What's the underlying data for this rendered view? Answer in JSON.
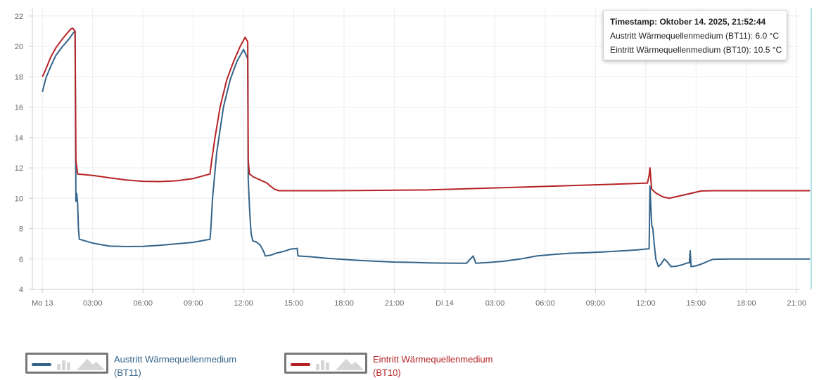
{
  "chart_data": {
    "type": "line",
    "title": "",
    "xlabel": "",
    "ylabel": "",
    "ylim": [
      4,
      22.5
    ],
    "yticks": [
      4,
      6,
      8,
      10,
      12,
      14,
      16,
      18,
      20,
      22
    ],
    "xlim": [
      -0.6,
      45.2
    ],
    "xticks": [
      {
        "x": 0,
        "label": "Mo 13"
      },
      {
        "x": 3,
        "label": "03:00"
      },
      {
        "x": 6,
        "label": "06:00"
      },
      {
        "x": 9,
        "label": "09:00"
      },
      {
        "x": 12,
        "label": "12:00"
      },
      {
        "x": 15,
        "label": "15:00"
      },
      {
        "x": 18,
        "label": "18:00"
      },
      {
        "x": 21,
        "label": "21:00"
      },
      {
        "x": 24,
        "label": "Di 14"
      },
      {
        "x": 27,
        "label": "03:00"
      },
      {
        "x": 30,
        "label": "06:00"
      },
      {
        "x": 33,
        "label": "09:00"
      },
      {
        "x": 36,
        "label": "12:00"
      },
      {
        "x": 39,
        "label": "15:00"
      },
      {
        "x": 42,
        "label": "18:00"
      },
      {
        "x": 45,
        "label": "21:00"
      }
    ],
    "x_unit": "hours since Mo 13 00:00",
    "grid": true,
    "legend_position": "bottom",
    "cursor_x": 45.87,
    "series": [
      {
        "name": "Austritt Wärmequellenmedium (BT11)",
        "color": "#34648a",
        "points": [
          [
            0,
            17.0
          ],
          [
            0.2,
            17.9
          ],
          [
            0.5,
            18.7
          ],
          [
            0.8,
            19.4
          ],
          [
            1.2,
            20.0
          ],
          [
            1.6,
            20.5
          ],
          [
            1.85,
            20.9
          ],
          [
            1.95,
            21.0
          ],
          [
            2.0,
            9.8
          ],
          [
            2.05,
            10.3
          ],
          [
            2.1,
            9.7
          ],
          [
            2.15,
            8.0
          ],
          [
            2.2,
            7.3
          ],
          [
            3,
            7.05
          ],
          [
            4,
            6.85
          ],
          [
            5,
            6.82
          ],
          [
            6,
            6.83
          ],
          [
            7,
            6.9
          ],
          [
            8,
            7.0
          ],
          [
            9,
            7.1
          ],
          [
            10,
            7.3
          ],
          [
            10.05,
            8.0
          ],
          [
            10.15,
            10.0
          ],
          [
            10.4,
            13.0
          ],
          [
            10.8,
            16.0
          ],
          [
            11.2,
            17.8
          ],
          [
            11.6,
            19.0
          ],
          [
            11.9,
            19.6
          ],
          [
            12.0,
            19.8
          ],
          [
            12.25,
            19.2
          ],
          [
            12.28,
            11.3
          ],
          [
            12.35,
            9.5
          ],
          [
            12.4,
            8.5
          ],
          [
            12.45,
            7.7
          ],
          [
            12.55,
            7.2
          ],
          [
            12.8,
            7.1
          ],
          [
            13.0,
            6.9
          ],
          [
            13.2,
            6.5
          ],
          [
            13.3,
            6.2
          ],
          [
            13.6,
            6.25
          ],
          [
            14.0,
            6.4
          ],
          [
            14.4,
            6.5
          ],
          [
            14.8,
            6.65
          ],
          [
            15.2,
            6.7
          ],
          [
            15.25,
            6.2
          ],
          [
            16,
            6.15
          ],
          [
            17,
            6.05
          ],
          [
            18,
            5.97
          ],
          [
            19,
            5.9
          ],
          [
            20,
            5.85
          ],
          [
            21,
            5.8
          ],
          [
            22,
            5.78
          ],
          [
            23,
            5.75
          ],
          [
            24,
            5.73
          ],
          [
            25,
            5.72
          ],
          [
            25.3,
            5.72
          ],
          [
            25.7,
            6.2
          ],
          [
            25.8,
            5.9
          ],
          [
            25.85,
            5.72
          ],
          [
            26.5,
            5.76
          ],
          [
            27.5,
            5.85
          ],
          [
            28.5,
            6.0
          ],
          [
            29.5,
            6.2
          ],
          [
            30.5,
            6.3
          ],
          [
            31.5,
            6.38
          ],
          [
            32.5,
            6.42
          ],
          [
            33.5,
            6.47
          ],
          [
            34.5,
            6.53
          ],
          [
            35.5,
            6.6
          ],
          [
            36.2,
            6.68
          ],
          [
            36.25,
            10.8
          ],
          [
            36.32,
            9.0
          ],
          [
            36.36,
            8.2
          ],
          [
            36.42,
            8.0
          ],
          [
            36.5,
            7.0
          ],
          [
            36.6,
            6.0
          ],
          [
            36.75,
            5.5
          ],
          [
            36.9,
            5.65
          ],
          [
            37.1,
            6.0
          ],
          [
            37.3,
            5.8
          ],
          [
            37.5,
            5.5
          ],
          [
            37.8,
            5.52
          ],
          [
            38.1,
            5.6
          ],
          [
            38.5,
            5.75
          ],
          [
            38.6,
            5.75
          ],
          [
            38.65,
            6.55
          ],
          [
            38.7,
            5.5
          ],
          [
            39.0,
            5.55
          ],
          [
            39.4,
            5.7
          ],
          [
            39.7,
            5.85
          ],
          [
            40.0,
            5.98
          ],
          [
            41,
            6.0
          ],
          [
            42,
            6.0
          ],
          [
            43,
            6.0
          ],
          [
            44,
            6.0
          ],
          [
            45,
            6.0
          ],
          [
            45.8,
            6.0
          ]
        ]
      },
      {
        "name": "Eintritt Wärmequellenmedium (BT10)",
        "color": "#b52225",
        "points": [
          [
            0,
            18.0
          ],
          [
            0.2,
            18.5
          ],
          [
            0.5,
            19.3
          ],
          [
            0.8,
            19.9
          ],
          [
            1.2,
            20.5
          ],
          [
            1.5,
            20.9
          ],
          [
            1.7,
            21.15
          ],
          [
            1.8,
            21.2
          ],
          [
            1.95,
            21.0
          ],
          [
            2.0,
            12.5
          ],
          [
            2.1,
            11.6
          ],
          [
            3,
            11.5
          ],
          [
            4,
            11.35
          ],
          [
            5,
            11.2
          ],
          [
            6,
            11.12
          ],
          [
            7,
            11.1
          ],
          [
            8,
            11.15
          ],
          [
            9,
            11.3
          ],
          [
            10,
            11.6
          ],
          [
            10.1,
            12.5
          ],
          [
            10.3,
            14.0
          ],
          [
            10.6,
            16.0
          ],
          [
            11.0,
            17.8
          ],
          [
            11.4,
            19.0
          ],
          [
            11.8,
            20.0
          ],
          [
            12.0,
            20.4
          ],
          [
            12.1,
            20.6
          ],
          [
            12.25,
            20.3
          ],
          [
            12.28,
            12.5
          ],
          [
            12.35,
            11.6
          ],
          [
            12.6,
            11.4
          ],
          [
            13.0,
            11.2
          ],
          [
            13.4,
            11.0
          ],
          [
            13.6,
            10.8
          ],
          [
            13.85,
            10.6
          ],
          [
            14.1,
            10.5
          ],
          [
            15,
            10.5
          ],
          [
            17,
            10.5
          ],
          [
            20,
            10.52
          ],
          [
            23,
            10.55
          ],
          [
            26,
            10.65
          ],
          [
            29,
            10.75
          ],
          [
            32,
            10.85
          ],
          [
            34,
            10.92
          ],
          [
            35.5,
            10.98
          ],
          [
            36.1,
            11.0
          ],
          [
            36.2,
            11.5
          ],
          [
            36.25,
            12.0
          ],
          [
            36.3,
            11.3
          ],
          [
            36.35,
            10.6
          ],
          [
            36.6,
            10.35
          ],
          [
            37.0,
            10.1
          ],
          [
            37.4,
            10.0
          ],
          [
            37.8,
            10.1
          ],
          [
            38.4,
            10.25
          ],
          [
            38.9,
            10.38
          ],
          [
            39.3,
            10.48
          ],
          [
            40,
            10.5
          ],
          [
            42,
            10.5
          ],
          [
            44,
            10.5
          ],
          [
            45.8,
            10.5
          ]
        ]
      }
    ]
  },
  "tooltip": {
    "timestamp": "Timestamp: Oktober 14. 2025, 21:52:44",
    "line1": "Austritt Wärmequellenmedium (BT11): 6.0 °C",
    "line2": "Eintritt Wärmequellenmedium (BT10): 10.5 °C"
  },
  "legend": {
    "items": [
      {
        "line1": "Austritt Wärmequellenmedium",
        "line2": "(BT11)",
        "color": "#34648a"
      },
      {
        "line1": "Eintritt Wärmequellenmedium",
        "line2": "(BT10)",
        "color": "#b52225"
      }
    ]
  }
}
